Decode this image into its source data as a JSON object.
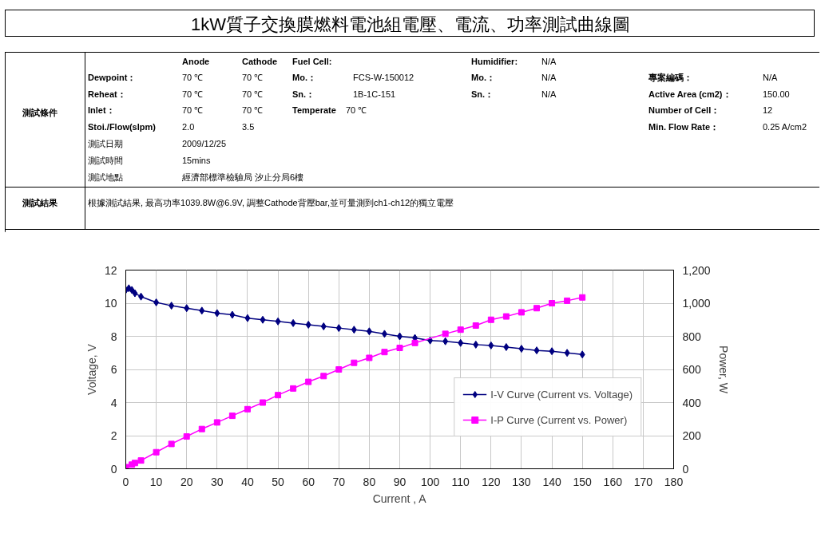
{
  "chart_data": {
    "type": "line",
    "title": "1kW質子交換膜燃料電池組電壓、電流、功率測試曲線圖",
    "xlabel": "Current , A",
    "ylabel": "Voltage, V",
    "y2label": "Power, W",
    "x": [
      0,
      1,
      2,
      3,
      5,
      10,
      15,
      20,
      25,
      30,
      35,
      40,
      45,
      50,
      55,
      60,
      65,
      70,
      75,
      80,
      85,
      90,
      95,
      100,
      105,
      110,
      115,
      120,
      125,
      130,
      135,
      140,
      145,
      150
    ],
    "series": [
      {
        "name": "I-V Curve (Current vs. Voltage)",
        "color": "#000080",
        "marker": "diamond",
        "values": [
          10.8,
          10.9,
          10.8,
          10.6,
          10.4,
          10.05,
          9.85,
          9.7,
          9.55,
          9.4,
          9.3,
          9.1,
          9.0,
          8.9,
          8.8,
          8.7,
          8.6,
          8.5,
          8.4,
          8.3,
          8.15,
          8.0,
          7.9,
          7.75,
          7.7,
          7.6,
          7.5,
          7.45,
          7.35,
          7.25,
          7.15,
          7.1,
          7.0,
          6.9
        ]
      },
      {
        "name": "I-P Curve (Current vs. Power)",
        "color": "#ff00ff",
        "marker": "square",
        "axis": "y2",
        "x": [
          0,
          2,
          3,
          5,
          10,
          15,
          20,
          25,
          30,
          35,
          40,
          45,
          50,
          55,
          60,
          65,
          70,
          75,
          80,
          85,
          90,
          95,
          105,
          110,
          115,
          120,
          125,
          130,
          135,
          140,
          145,
          150
        ],
        "values": [
          10,
          25,
          35,
          50,
          100,
          150,
          195,
          240,
          280,
          320,
          360,
          400,
          445,
          485,
          525,
          560,
          600,
          640,
          670,
          705,
          730,
          760,
          815,
          840,
          865,
          900,
          920,
          945,
          970,
          1000,
          1015,
          1035
        ]
      }
    ],
    "xlim": [
      0,
      180
    ],
    "xticks": [
      0,
      10,
      20,
      30,
      40,
      50,
      60,
      70,
      80,
      90,
      100,
      110,
      120,
      130,
      140,
      150,
      160,
      170,
      180
    ],
    "ylim": [
      0,
      12
    ],
    "yticks": [
      0,
      2,
      4,
      6,
      8,
      10,
      12
    ],
    "y2lim": [
      0,
      1200
    ],
    "y2ticks": [
      0,
      200,
      400,
      600,
      800,
      {
        "value": 1000,
        "label": "1,000"
      },
      {
        "value": 1200,
        "label": "1,200"
      }
    ],
    "grid": true,
    "legend": "bottom right",
    "annotations": [
      "測試條件",
      "Anode",
      "Cathode",
      "Fuel Cell:",
      "Humidifier:",
      "N/A",
      "Dewpoint：",
      "70 ℃",
      "70 ℃",
      "Mo.：",
      "FCS-W-150012",
      "Mo.：",
      "N/A",
      "專案編碼：",
      "N/A",
      "Reheat：",
      "70 ℃",
      "70 ℃",
      "Sn.：",
      "1B-1C-151",
      "Sn.：",
      "N/A",
      "Active Area (cm2)：",
      "150.00",
      "Inlet：",
      "70 ℃",
      "70 ℃",
      "Temperate",
      "70 ℃",
      "Number of Cell：",
      "12",
      "Stoi./Flow(slpm)",
      "2.0",
      "3.5",
      "Min. Flow Rate：",
      "0.25 A/cm2",
      "測試日期",
      "2009/12/25",
      "測試時間",
      "15mins",
      "測試地點",
      "經濟部標準檢驗局 汐止分局6樓",
      "測試結果",
      "根據測試結果, 最高功率1039.8W@6.9V, 調整Cathode背壓bar,並可量測到ch1-ch12的獨立電壓"
    ]
  }
}
